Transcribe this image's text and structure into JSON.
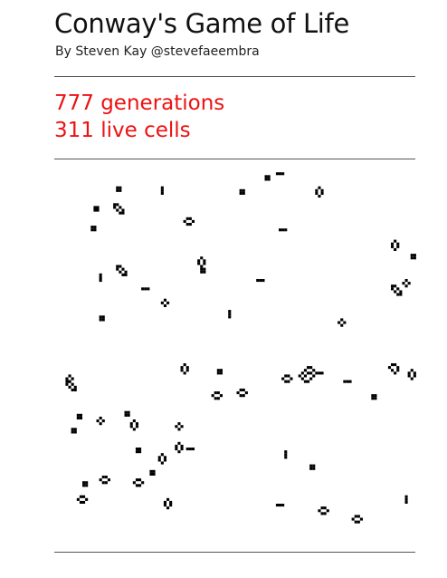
{
  "header": {
    "title": "Conway's Game of Life",
    "byline": "By Steven Kay @stevefaeembra"
  },
  "stats": {
    "generations": "777 generations",
    "live_cells": "311 live cells"
  },
  "colors": {
    "accent": "#ee1111",
    "cell": "#000000",
    "rule": "#555555"
  },
  "board": {
    "cell_color": "#000000",
    "patterns": [
      {
        "type": "block"
      },
      {
        "type": "blinker-v"
      },
      {
        "type": "block"
      },
      {
        "type": "block"
      },
      {
        "type": "blinker-h"
      },
      {
        "type": "beehive-v"
      },
      {
        "type": "block"
      },
      {
        "type": "ship"
      },
      {
        "type": "beehive-h"
      },
      {
        "type": "block"
      },
      {
        "type": "beehive-v"
      },
      {
        "type": "blinker-h"
      },
      {
        "type": "beehive-v"
      },
      {
        "type": "block"
      },
      {
        "type": "blinker-v"
      },
      {
        "type": "ship"
      },
      {
        "type": "block"
      },
      {
        "type": "blinker-h"
      },
      {
        "type": "tub"
      },
      {
        "type": "blinker-h"
      },
      {
        "type": "tub"
      },
      {
        "type": "block"
      },
      {
        "type": "ship"
      },
      {
        "type": "tub"
      },
      {
        "type": "blinker-v"
      },
      {
        "type": "block"
      },
      {
        "type": "tub"
      },
      {
        "type": "beehive-v"
      },
      {
        "type": "block"
      },
      {
        "type": "beehive-h"
      },
      {
        "type": "beehive-h"
      },
      {
        "type": "beehive-h"
      },
      {
        "type": "complex"
      },
      {
        "type": "blinker-h"
      },
      {
        "type": "loaf"
      },
      {
        "type": "beehive-v"
      },
      {
        "type": "block"
      },
      {
        "type": "block"
      },
      {
        "type": "tub"
      },
      {
        "type": "beehive-v"
      },
      {
        "type": "tub"
      },
      {
        "type": "block"
      },
      {
        "type": "beehive-v"
      },
      {
        "type": "blinker-h"
      },
      {
        "type": "beehive-v"
      },
      {
        "type": "block"
      },
      {
        "type": "blinker-v"
      },
      {
        "type": "block"
      },
      {
        "type": "ship"
      },
      {
        "type": "block"
      },
      {
        "type": "beehive-h"
      },
      {
        "type": "beehive-h"
      },
      {
        "type": "beehive-h"
      },
      {
        "type": "block"
      },
      {
        "type": "blinker-v"
      },
      {
        "type": "beehive-v"
      },
      {
        "type": "blinker-h"
      },
      {
        "type": "beehive-h"
      },
      {
        "type": "beehive-h"
      }
    ]
  }
}
